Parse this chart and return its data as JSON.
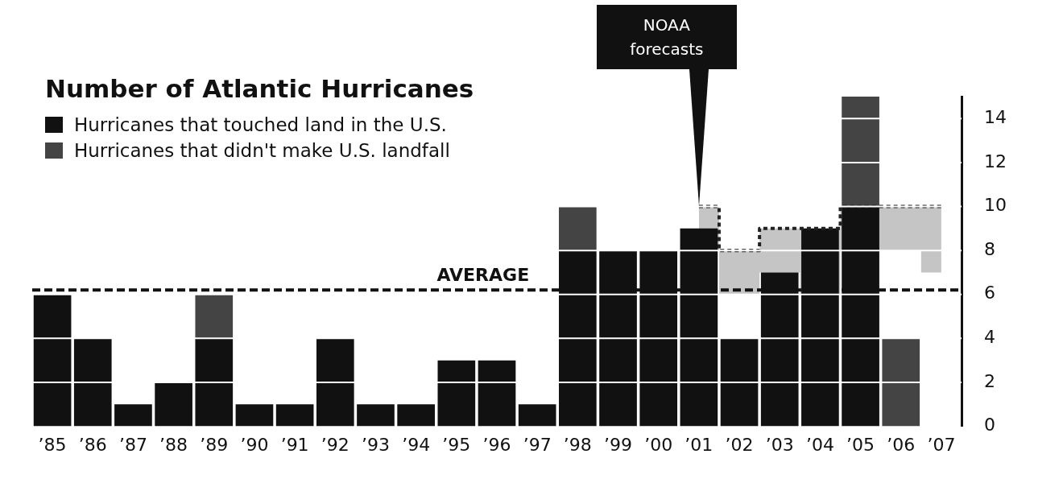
{
  "chart_data": {
    "type": "bar",
    "title": "Number of Atlantic Hurricanes",
    "categories": [
      "’85",
      "’86",
      "’87",
      "’88",
      "’89",
      "’90",
      "’91",
      "’92",
      "’93",
      "’94",
      "’95",
      "’96",
      "’97",
      "’98",
      "’99",
      "’00",
      "’01",
      "’02",
      "’03",
      "’04",
      "’05",
      "’06",
      "’07"
    ],
    "stacked": true,
    "series": [
      {
        "name": "Hurricanes that touched land in the U.S.",
        "color": "#111111",
        "values": [
          6,
          4,
          1,
          2,
          4,
          1,
          1,
          4,
          1,
          1,
          3,
          3,
          1,
          8,
          8,
          8,
          9,
          4,
          7,
          9,
          10,
          0,
          null
        ]
      },
      {
        "name": "Hurricanes that didn't make U.S. landfall",
        "color": "#444444",
        "values": [
          0,
          0,
          0,
          0,
          2,
          0,
          0,
          0,
          0,
          0,
          0,
          0,
          0,
          2,
          0,
          0,
          0,
          0,
          0,
          0,
          5,
          4,
          null
        ]
      },
      {
        "type": "step",
        "color": "#222222",
        "line_style": "dotted",
        "values": [
          null,
          null,
          null,
          null,
          null,
          null,
          null,
          null,
          null,
          null,
          null,
          null,
          null,
          null,
          null,
          null,
          10,
          8,
          9,
          9,
          10,
          10,
          10
        ],
        "lower": [
          null,
          null,
          null,
          null,
          null,
          null,
          null,
          null,
          null,
          null,
          null,
          null,
          null,
          null,
          null,
          null,
          8,
          6,
          7,
          6,
          8,
          8,
          7
        ],
        "upper": [
          null,
          null,
          null,
          null,
          null,
          null,
          null,
          null,
          null,
          null,
          null,
          null,
          null,
          null,
          null,
          null,
          10,
          8,
          9,
          9,
          10,
          10,
          10
        ]
      }
    ],
    "ylim": [
      0,
      15
    ],
    "yticks": [
      0,
      2,
      4,
      6,
      8,
      10,
      12,
      14
    ],
    "grid": "y",
    "legend": "top left",
    "ref_lines": [
      {
        "axis": "y",
        "value": 6.2,
        "label": "AVERAGE",
        "line_style": "dashed"
      }
    ],
    "annotations": [
      "NOAA forecasts"
    ]
  }
}
